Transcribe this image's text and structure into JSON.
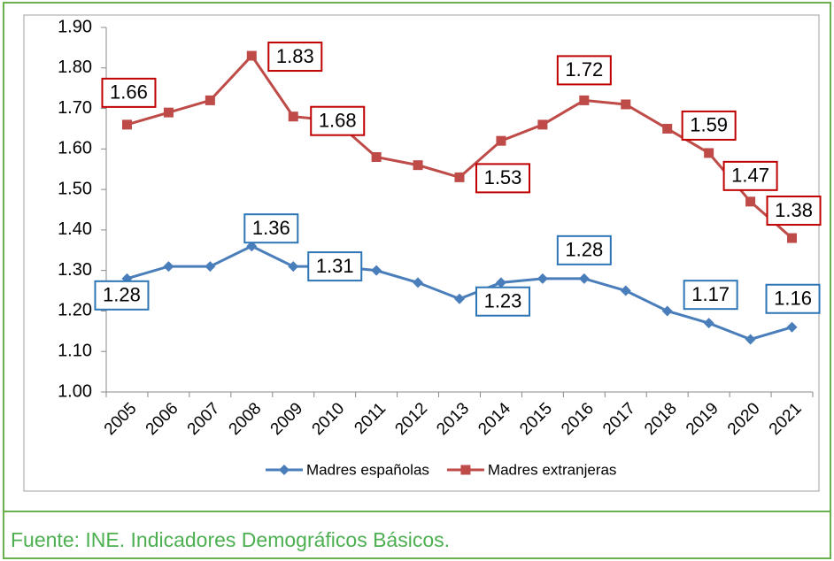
{
  "chart_data": {
    "type": "line",
    "categories": [
      "2005",
      "2006",
      "2007",
      "2008",
      "2009",
      "2010",
      "2011",
      "2012",
      "2013",
      "2014",
      "2015",
      "2016",
      "2017",
      "2018",
      "2019",
      "2020",
      "2021"
    ],
    "series": [
      {
        "name": "Madres españolas",
        "color": "#4a7ebb",
        "marker": "diamond",
        "label_color": "#2e75b6",
        "values": [
          1.28,
          1.31,
          1.31,
          1.36,
          1.31,
          1.31,
          1.3,
          1.27,
          1.23,
          1.27,
          1.28,
          1.28,
          1.25,
          1.2,
          1.17,
          1.13,
          1.16
        ],
        "value_labels": [
          "1.28",
          null,
          null,
          "1.36",
          "1.31",
          null,
          null,
          null,
          "1.23",
          null,
          null,
          "1.28",
          null,
          null,
          "1.17",
          null,
          "1.16"
        ]
      },
      {
        "name": "Madres extranjeras",
        "color": "#be4b48",
        "marker": "square",
        "label_color": "#c00000",
        "values": [
          1.66,
          1.69,
          1.72,
          1.83,
          1.68,
          1.67,
          1.58,
          1.56,
          1.53,
          1.62,
          1.66,
          1.72,
          1.71,
          1.65,
          1.59,
          1.47,
          1.38
        ],
        "value_labels": [
          "1.66",
          null,
          null,
          "1.83",
          "1.68",
          null,
          null,
          null,
          "1.53",
          null,
          null,
          "1.72",
          null,
          null,
          "1.59",
          "1.47",
          "1.38"
        ]
      }
    ],
    "ylim": [
      1.0,
      1.9
    ],
    "yticks": [
      {
        "value": 1.0,
        "label": "1.00"
      },
      {
        "value": 1.1,
        "label": "1.10"
      },
      {
        "value": 1.2,
        "label": "1.20"
      },
      {
        "value": 1.3,
        "label": "1.30"
      },
      {
        "value": 1.4,
        "label": "1.40"
      },
      {
        "value": 1.5,
        "label": "1.50"
      },
      {
        "value": 1.6,
        "label": "1.60"
      },
      {
        "value": 1.7,
        "label": "1.70"
      },
      {
        "value": 1.8,
        "label": "1.80"
      },
      {
        "value": 1.9,
        "label": "1.90"
      }
    ],
    "legend": "bottom",
    "source": "Fuente: INE. Indicadores Demográficos Básicos."
  }
}
